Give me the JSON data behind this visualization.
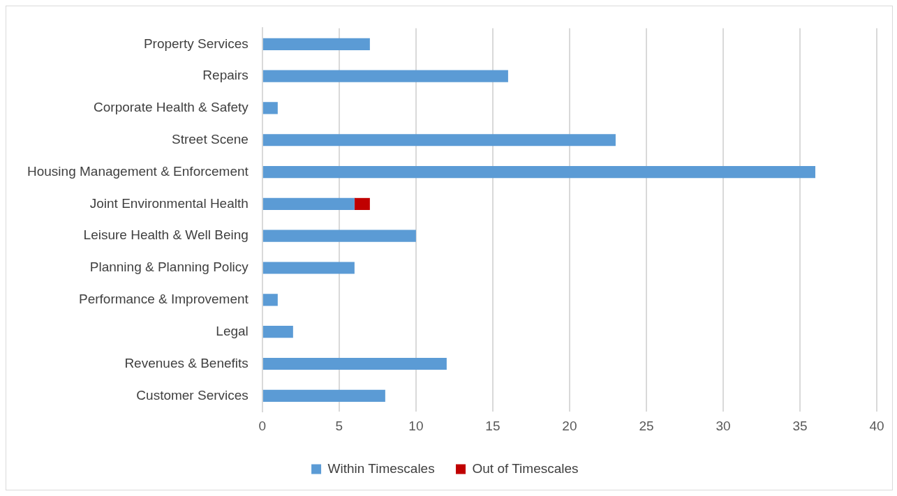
{
  "chart_data": {
    "type": "bar",
    "orientation": "horizontal",
    "stacked": true,
    "categories": [
      "Property Services",
      "Repairs",
      "Corporate Health & Safety",
      "Street Scene",
      "Housing Management & Enforcement",
      "Joint Environmental Health",
      "Leisure Health & Well Being",
      "Planning & Planning Policy",
      "Performance & Improvement",
      "Legal",
      "Revenues & Benefits",
      "Customer Services"
    ],
    "series": [
      {
        "name": "Within Timescales",
        "color": "#5b9bd5",
        "values": [
          7,
          16,
          1,
          23,
          36,
          6,
          10,
          6,
          1,
          2,
          12,
          8
        ]
      },
      {
        "name": "Out of Timescales",
        "color": "#c00000",
        "values": [
          null,
          null,
          null,
          null,
          null,
          1,
          null,
          null,
          null,
          null,
          null,
          null
        ]
      }
    ],
    "xlim": [
      0,
      40
    ],
    "xticks": [
      0,
      5,
      10,
      15,
      20,
      25,
      30,
      35,
      40
    ],
    "grid": "x",
    "legend": "bottom"
  }
}
